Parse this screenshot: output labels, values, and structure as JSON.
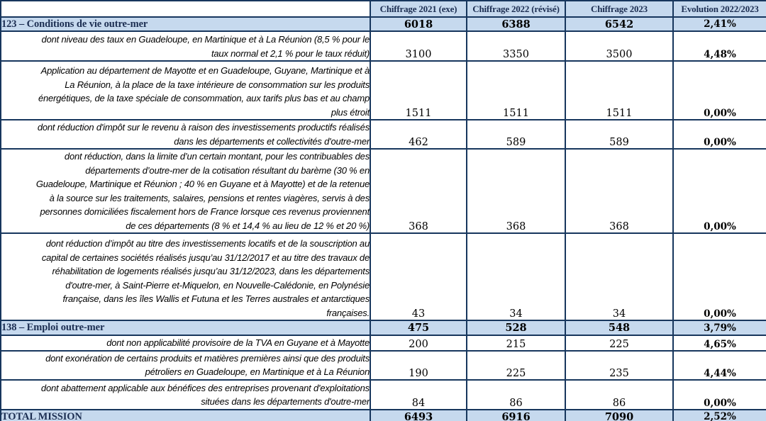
{
  "colors": {
    "band_fill": "#c6d9ee",
    "border": "#17365d",
    "header_text": "#1c2e52",
    "body_text": "#000000"
  },
  "table": {
    "columns": [
      "",
      "Chiffrage 2021 (exe)",
      "Chiffrage 2022 (révisé)",
      "Chiffrage 2023",
      "Evolution 2022/2023"
    ],
    "rows": [
      {
        "type": "section",
        "label": "123 – Conditions de vie outre-mer",
        "v2021": "6018",
        "v2022": "6388",
        "v2023": "6542",
        "evo": "2,41%"
      },
      {
        "type": "detail",
        "lines": [
          "dont niveau des taux en Guadeloupe, en Martinique et à La Réunion (8,5 % pour le",
          "taux normal et 2,1 % pour le taux réduit)"
        ],
        "v2021": "3100",
        "v2022": "3350",
        "v2023": "3500",
        "evo": "4,48%"
      },
      {
        "type": "detail",
        "lines": [
          "Application au département de Mayotte et en Guadeloupe, Guyane, Martinique et à",
          "La Réunion, à la place de la taxe intérieure de consommation sur les produits",
          "énergétiques, de la taxe spéciale de consommation, aux tarifs plus bas et au champ",
          "plus étroit"
        ],
        "v2021": "1511",
        "v2022": "1511",
        "v2023": "1511",
        "evo": "0,00%"
      },
      {
        "type": "detail",
        "lines": [
          "dont réduction d'impôt sur le revenu à raison des investissements productifs réalisés",
          "dans les départements et collectivités d'outre-mer"
        ],
        "v2021": "462",
        "v2022": "589",
        "v2023": "589",
        "evo": "0,00%"
      },
      {
        "type": "detail",
        "lines": [
          "dont réduction, dans la limite d’un certain montant, pour les contribuables des",
          "départements d’outre-mer de la cotisation résultant du barème (30 % en",
          "Guadeloupe, Martinique et Réunion ; 40 % en Guyane et à Mayotte) et de la retenue",
          "à la source sur les traitements, salaires, pensions et rentes viagères, servis à des",
          "personnes domiciliées fiscalement hors de France lorsque ces revenus proviennent",
          "de ces départements (8 % et 14,4 % au lieu de 12 % et 20 %)"
        ],
        "v2021": "368",
        "v2022": "368",
        "v2023": "368",
        "evo": "0,00%"
      },
      {
        "type": "detail",
        "lines": [
          "dont réduction d’impôt au titre des investissements locatifs et de la souscription au",
          "capital de certaines sociétés réalisés jusqu’au 31/12/2017 et au titre des travaux de",
          "réhabilitation de logements réalisés jusqu’au 31/12/2023, dans les départements",
          "d'outre-mer, à Saint-Pierre et-Miquelon, en Nouvelle-Calédonie, en Polynésie",
          "française, dans les îles Wallis et Futuna et les Terres australes et antarctiques",
          "françaises."
        ],
        "v2021": "43",
        "v2022": "34",
        "v2023": "34",
        "evo": "0,00%"
      },
      {
        "type": "section",
        "label": "138 – Emploi outre-mer",
        "v2021": "475",
        "v2022": "528",
        "v2023": "548",
        "evo": "3,79%"
      },
      {
        "type": "detail",
        "lines": [
          "dont non applicabilité provisoire de la TVA en Guyane et à Mayotte"
        ],
        "v2021": "200",
        "v2022": "215",
        "v2023": "225",
        "evo": "4,65%"
      },
      {
        "type": "detail",
        "lines": [
          "dont exonération de certains produits et matières premières ainsi que des produits",
          "pétroliers en Guadeloupe, en Martinique et à La Réunion"
        ],
        "v2021": "190",
        "v2022": "225",
        "v2023": "235",
        "evo": "4,44%"
      },
      {
        "type": "detail",
        "lines": [
          "dont abattement applicable aux bénéfices des entreprises provenant d'exploitations",
          "situées dans les départements d'outre-mer"
        ],
        "v2021": "84",
        "v2022": "86",
        "v2023": "86",
        "evo": "0,00%"
      },
      {
        "type": "total",
        "label": "TOTAL MISSION",
        "v2021": "6493",
        "v2022": "6916",
        "v2023": "7090",
        "evo": "2,52%"
      }
    ]
  }
}
